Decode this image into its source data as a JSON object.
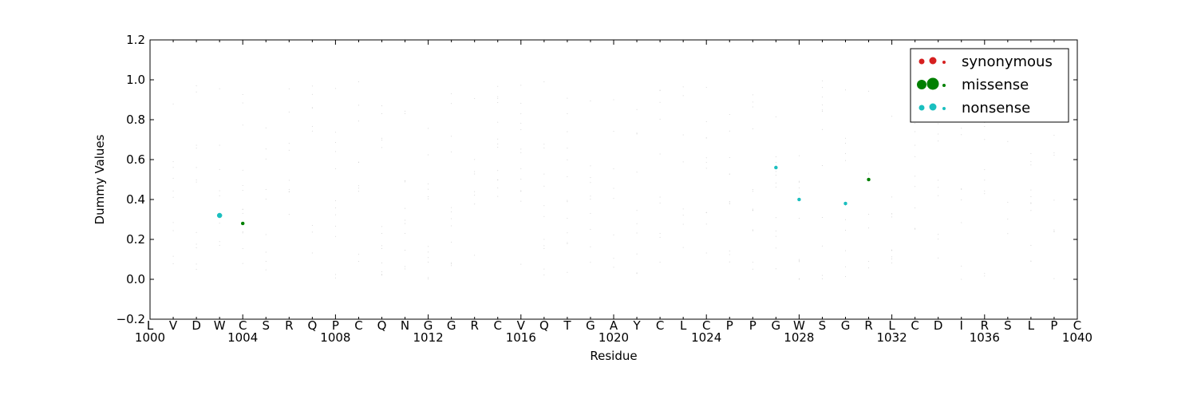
{
  "chart_data": {
    "type": "scatter",
    "xlabel": "Residue",
    "ylabel": "Dummy Values",
    "xlim": [
      1000,
      1040
    ],
    "ylim": [
      -0.2,
      1.2
    ],
    "x_ticks": [
      1000,
      1004,
      1008,
      1012,
      1016,
      1020,
      1024,
      1028,
      1032,
      1036,
      1040
    ],
    "y_ticks": [
      -0.2,
      0.0,
      0.2,
      0.4,
      0.6,
      0.8,
      1.0,
      1.2
    ],
    "y_tick_labels": [
      "−0.2",
      "0.0",
      "0.2",
      "0.4",
      "0.6",
      "0.8",
      "1.0",
      "1.2"
    ],
    "residues": [
      "L",
      "V",
      "D",
      "W",
      "C",
      "S",
      "R",
      "Q",
      "P",
      "C",
      "Q",
      "N",
      "G",
      "G",
      "R",
      "C",
      "V",
      "Q",
      "T",
      "G",
      "A",
      "Y",
      "C",
      "L",
      "C",
      "P",
      "P",
      "G",
      "W",
      "S",
      "G",
      "R",
      "L",
      "C",
      "D",
      "I",
      "R",
      "S",
      "L",
      "P",
      "C"
    ],
    "legend": {
      "placement": "top-right",
      "entries": [
        {
          "label": "synonymous",
          "color": "#d62020"
        },
        {
          "label": "missense",
          "color": "#008000"
        },
        {
          "label": "nonsense",
          "color": "#1abfbf"
        }
      ]
    },
    "series": [
      {
        "name": "synonymous",
        "color": "#d62020",
        "points": []
      },
      {
        "name": "missense",
        "color": "#008000",
        "points": [
          {
            "x": 1004,
            "y": 0.28,
            "size": 2
          },
          {
            "x": 1031,
            "y": 0.5,
            "size": 2
          }
        ]
      },
      {
        "name": "nonsense",
        "color": "#1abfbf",
        "points": [
          {
            "x": 1003,
            "y": 0.32,
            "size": 3
          },
          {
            "x": 1027,
            "y": 0.56,
            "size": 2
          },
          {
            "x": 1028,
            "y": 0.4,
            "size": 2
          },
          {
            "x": 1030,
            "y": 0.38,
            "size": 2
          }
        ]
      }
    ]
  }
}
